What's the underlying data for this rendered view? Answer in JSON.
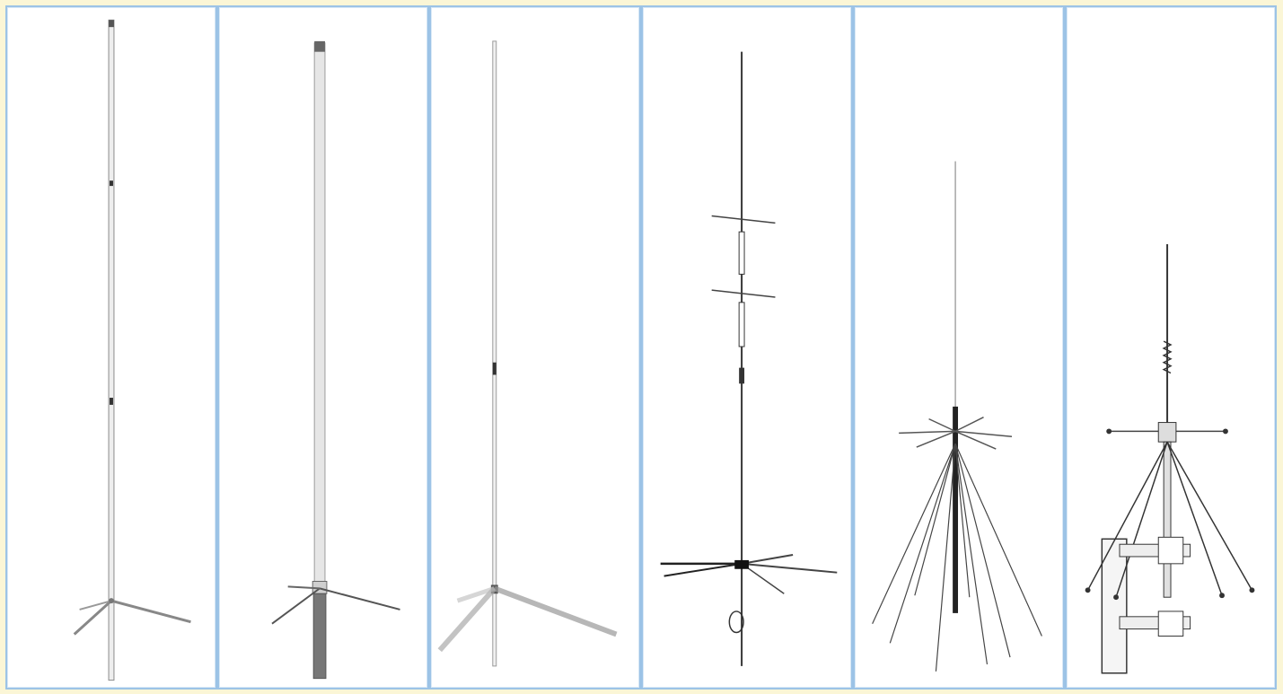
{
  "page": {
    "background_color": "#fbf6d6",
    "panel_border_color": "#9cc3e6"
  },
  "panels": [
    {
      "subject": "antenna-1"
    },
    {
      "subject": "antenna-2"
    },
    {
      "subject": "antenna-3"
    },
    {
      "subject": "antenna-4"
    },
    {
      "subject": "antenna-5"
    },
    {
      "subject": "antenna-6"
    }
  ]
}
